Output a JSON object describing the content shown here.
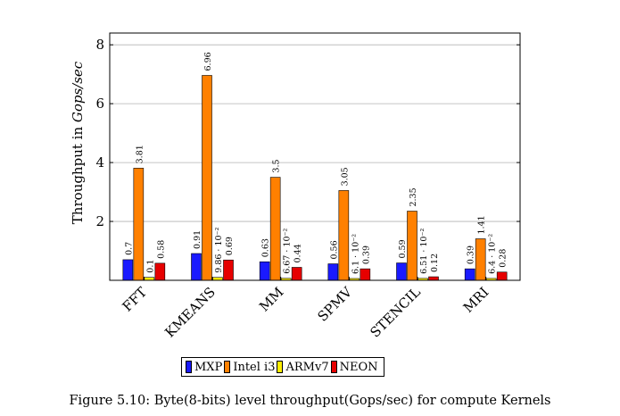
{
  "chart_data": {
    "type": "bar",
    "ylabel_prefix": "Throughput in ",
    "ylabel_unit": "Gops/sec",
    "ylim": [
      0,
      8.4
    ],
    "yticks": [
      "2",
      "4",
      "6",
      "8"
    ],
    "grid": true,
    "legend_position": "bottom-center",
    "categories": [
      "FFT",
      "KMEANS",
      "MM",
      "SPMV",
      "STENCIL",
      "MRI"
    ],
    "series": [
      {
        "name": "MXP",
        "color": "#1a1aff",
        "values": [
          0.7,
          0.91,
          0.63,
          0.56,
          0.59,
          0.39
        ],
        "labels": [
          "0.7",
          "0.91",
          "0.63",
          "0.56",
          "0.59",
          "0.39"
        ]
      },
      {
        "name": "Intel i3",
        "color": "#ff8000",
        "values": [
          3.81,
          6.96,
          3.5,
          3.05,
          2.35,
          1.41
        ],
        "labels": [
          "3.81",
          "6.96",
          "3.5",
          "3.05",
          "2.35",
          "1.41"
        ]
      },
      {
        "name": "ARMv7",
        "color": "#ffee00",
        "values": [
          0.1,
          0.0986,
          0.0667,
          0.061,
          0.0651,
          0.064
        ],
        "labels": [
          "0.1",
          "9.86 · 10⁻²",
          "6.67 · 10⁻²",
          "6.1 · 10⁻²",
          "6.51 · 10⁻²",
          "6.4 · 10⁻²"
        ]
      },
      {
        "name": "NEON",
        "color": "#e60000",
        "values": [
          0.58,
          0.69,
          0.44,
          0.39,
          0.12,
          0.28
        ],
        "labels": [
          "0.58",
          "0.69",
          "0.44",
          "0.39",
          "0.12",
          "0.28"
        ]
      }
    ]
  },
  "legend": {
    "items": [
      {
        "label": "MXP",
        "color": "#1a1aff"
      },
      {
        "label": "Intel i3",
        "color": "#ff8000"
      },
      {
        "label": "ARMv7",
        "color": "#ffee00"
      },
      {
        "label": "NEON",
        "color": "#e60000"
      }
    ]
  },
  "caption": "Figure 5.10: Byte(8-bits) level throughput(Gops/sec) for compute Kernels"
}
